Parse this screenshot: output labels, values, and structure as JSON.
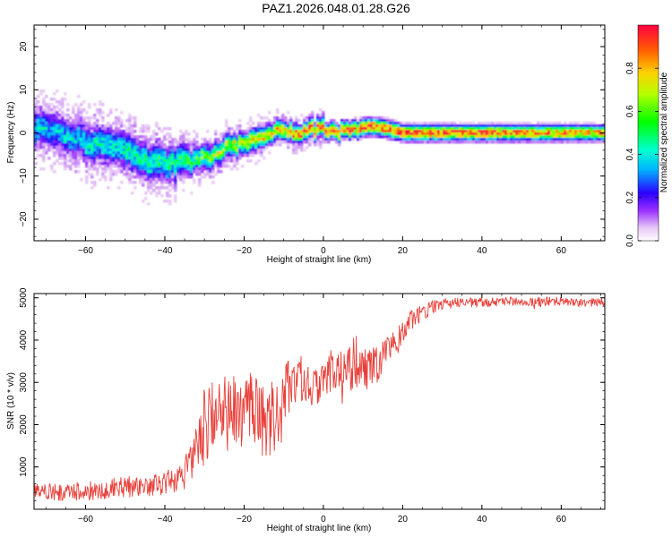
{
  "title": "PAZ1.2026.048.01.28.G26",
  "chart_data": [
    {
      "type": "heatmap",
      "name": "spectrogram",
      "xlabel": "Height of straight line (km)",
      "ylabel": "Frequency (Hz)",
      "xlim": [
        -73,
        71
      ],
      "ylim": [
        -25,
        25
      ],
      "xticks": [
        -60,
        -40,
        -20,
        0,
        20,
        40,
        60
      ],
      "yticks": [
        -20,
        -10,
        0,
        10,
        20
      ],
      "colorbar": {
        "label": "Normalized spectral amplitude",
        "range": [
          0,
          1
        ],
        "ticks": [
          0.0,
          0.2,
          0.4,
          0.6,
          0.8
        ]
      },
      "ridge": {
        "x": [
          -72,
          -68,
          -64,
          -60,
          -56,
          -52,
          -48,
          -44,
          -40,
          -36,
          -32,
          -28,
          -24,
          -20,
          -16,
          -12,
          -8,
          -4,
          0,
          4,
          8,
          12,
          16,
          20,
          30,
          40,
          50,
          60,
          70
        ],
        "freq": [
          1.5,
          1.0,
          -1.0,
          -2.5,
          -3.0,
          -4.0,
          -5.0,
          -6.5,
          -7.5,
          -6.5,
          -6.5,
          -5.0,
          -3.0,
          -2.5,
          -1.5,
          0.5,
          0.0,
          0.5,
          1.0,
          0.3,
          1.0,
          1.5,
          1.0,
          0.0,
          0.0,
          0.0,
          0.0,
          0.0,
          0.0
        ],
        "peak": [
          0.3,
          0.3,
          0.3,
          0.35,
          0.35,
          0.35,
          0.4,
          0.4,
          0.4,
          0.45,
          0.5,
          0.55,
          0.6,
          0.65,
          0.65,
          0.7,
          0.8,
          0.85,
          0.9,
          0.9,
          0.9,
          0.95,
          0.9,
          0.95,
          0.95,
          0.9,
          0.9,
          0.85,
          0.8
        ],
        "spread": [
          3.0,
          3.0,
          3.0,
          3.0,
          3.0,
          3.0,
          3.0,
          3.0,
          3.0,
          2.5,
          2.0,
          2.0,
          2.0,
          1.8,
          1.8,
          1.6,
          1.5,
          1.5,
          1.5,
          1.5,
          1.5,
          1.5,
          1.5,
          1.4,
          1.4,
          1.4,
          1.4,
          1.4,
          1.4
        ]
      }
    },
    {
      "type": "line",
      "name": "snr",
      "xlabel": "Height of straight line (km)",
      "ylabel": "SNR (10 * v/v)",
      "xlim": [
        -73,
        71
      ],
      "ylim": [
        0,
        5100
      ],
      "xticks": [
        -60,
        -40,
        -20,
        0,
        20,
        40,
        60
      ],
      "yticks": [
        1000,
        2000,
        3000,
        4000,
        5000
      ],
      "color": "#e8403a",
      "x": [
        -73,
        -70,
        -65,
        -60,
        -55,
        -50,
        -45,
        -40,
        -37,
        -35,
        -33,
        -31,
        -30,
        -28,
        -26,
        -24,
        -22,
        -20,
        -18,
        -16,
        -14,
        -12,
        -10,
        -8,
        -6,
        -4,
        -2,
        0,
        2,
        4,
        6,
        8,
        10,
        12,
        14,
        16,
        18,
        20,
        22,
        24,
        26,
        28,
        30,
        35,
        40,
        45,
        50,
        55,
        60,
        65,
        71
      ],
      "y": [
        450,
        420,
        380,
        430,
        480,
        520,
        560,
        600,
        700,
        820,
        1100,
        1600,
        2000,
        2200,
        2100,
        2400,
        2300,
        2200,
        2500,
        2100,
        2000,
        2300,
        2700,
        3000,
        3100,
        3000,
        2900,
        3100,
        3300,
        3200,
        3300,
        3500,
        3400,
        3300,
        3500,
        3700,
        3900,
        4200,
        4450,
        4600,
        4700,
        4800,
        4850,
        4900,
        4880,
        4900,
        4920,
        4900,
        4920,
        4880,
        4900
      ],
      "noise": [
        200,
        200,
        200,
        220,
        250,
        250,
        260,
        260,
        300,
        350,
        500,
        800,
        900,
        1000,
        900,
        1000,
        900,
        800,
        900,
        900,
        900,
        900,
        700,
        600,
        550,
        500,
        500,
        500,
        500,
        550,
        550,
        650,
        600,
        500,
        450,
        400,
        350,
        300,
        250,
        200,
        180,
        150,
        130,
        120,
        110,
        110,
        110,
        110,
        110,
        110,
        110
      ]
    }
  ]
}
